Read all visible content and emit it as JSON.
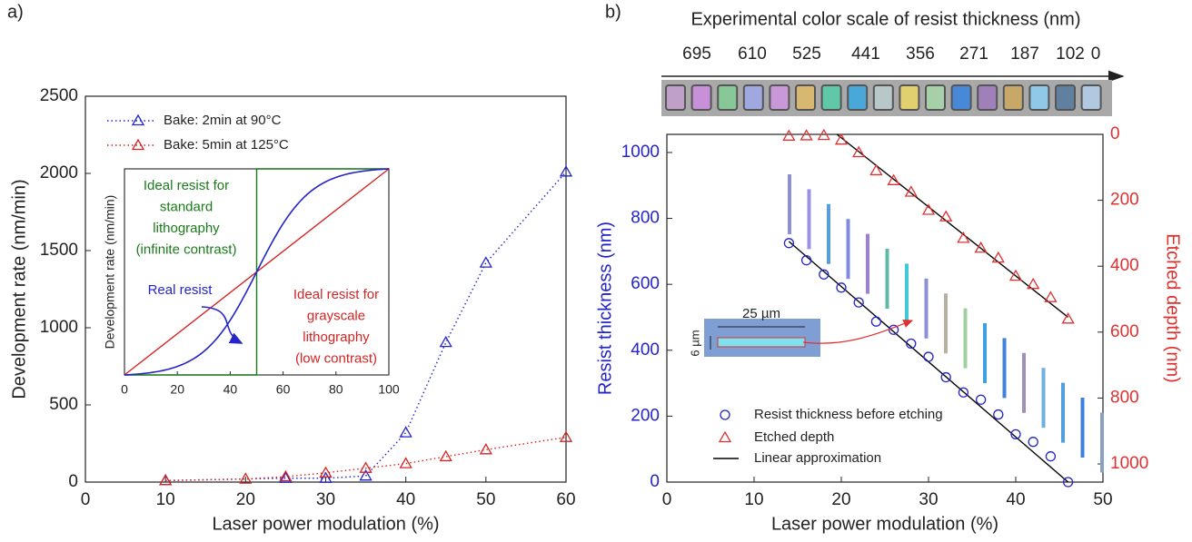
{
  "chart_data": [
    {
      "type": "line",
      "panel_label": "a)",
      "xlabel": "Laser power modulation (%)",
      "ylabel": "Development rate (nm/min)",
      "xlim": [
        0,
        60
      ],
      "ylim": [
        0,
        2500
      ],
      "xticks": [
        0,
        10,
        20,
        30,
        40,
        50,
        60
      ],
      "yticks": [
        0,
        500,
        1000,
        1500,
        2000,
        2500
      ],
      "legend_loc": "upper left",
      "series": [
        {
          "name": "Bake: 2min at 90°C",
          "color": "#2424c8",
          "marker": "triangle",
          "x": [
            10,
            25,
            30,
            35,
            40,
            45,
            50,
            60
          ],
          "values": [
            10,
            25,
            25,
            40,
            320,
            905,
            1420,
            2010
          ]
        },
        {
          "name": "Bake: 5min at 125°C",
          "color": "#d42424",
          "marker": "triangle",
          "x": [
            10,
            20,
            25,
            30,
            35,
            40,
            45,
            50,
            60
          ],
          "values": [
            10,
            20,
            35,
            60,
            90,
            120,
            165,
            210,
            290
          ]
        }
      ],
      "inset": {
        "ylabel": "Development rate (nm/min)",
        "xlim": [
          0,
          100
        ],
        "xticks": [
          0,
          20,
          40,
          60,
          80,
          100
        ],
        "annotations": [
          {
            "lines": [
              "Ideal resist for",
              "standard",
              "lithography",
              "(infinite contrast)"
            ],
            "color": "#1a7a1a"
          },
          {
            "lines": [
              "Real resist"
            ],
            "color": "#2424c8"
          },
          {
            "lines": [
              "Ideal resist for",
              "grayscale",
              "lithography",
              "(low contrast)"
            ],
            "color": "#d42424"
          }
        ]
      }
    },
    {
      "type": "scatter",
      "panel_label": "b)",
      "scale_title": "Experimental color scale of resist thickness (nm)",
      "scale_labels": [
        695,
        610,
        525,
        441,
        356,
        271,
        187,
        102,
        0
      ],
      "xlabel": "Laser power modulation (%)",
      "ylabel": "Resist thickness (nm)",
      "y2label": "Etched depth (nm)",
      "xlim": [
        0,
        50
      ],
      "ylim": [
        0,
        1055
      ],
      "y2lim": [
        1055,
        0
      ],
      "xticks": [
        0,
        10,
        20,
        30,
        40,
        50
      ],
      "yticks": [
        0,
        200,
        400,
        600,
        800,
        1000
      ],
      "y2ticks": [
        0,
        200,
        400,
        600,
        800,
        1000
      ],
      "legend_loc": "lower left",
      "series": [
        {
          "name": "Resist thickness before etching",
          "color": "#2424c8",
          "marker": "circle",
          "x": [
            14,
            16,
            18,
            20,
            22,
            24,
            26,
            28,
            30,
            32,
            34,
            36,
            38,
            40,
            42,
            44,
            46
          ],
          "values": [
            725,
            673,
            630,
            590,
            545,
            487,
            462,
            420,
            380,
            318,
            272,
            250,
            205,
            145,
            122,
            78,
            0
          ]
        },
        {
          "name": "Etched depth",
          "color": "#e03030",
          "marker": "triangle",
          "axis": "y2",
          "x": [
            14,
            16,
            18,
            20,
            22,
            24,
            26,
            28,
            30,
            32,
            34,
            36,
            38,
            40,
            42,
            44,
            46
          ],
          "values": [
            5,
            4,
            3,
            17,
            55,
            110,
            140,
            175,
            230,
            250,
            315,
            345,
            375,
            430,
            455,
            495,
            560
          ]
        }
      ],
      "fits": {
        "name": "Linear approximation",
        "color": "#000000",
        "lines": [
          {
            "x": [
              14,
              46
            ],
            "values": [
              730,
              0
            ]
          },
          {
            "axis": "y2",
            "x": [
              19.5,
              46
            ],
            "values": [
              0,
              555
            ]
          }
        ]
      },
      "inset_labels": {
        "width": "25 µm",
        "height": "6 µm"
      }
    }
  ]
}
